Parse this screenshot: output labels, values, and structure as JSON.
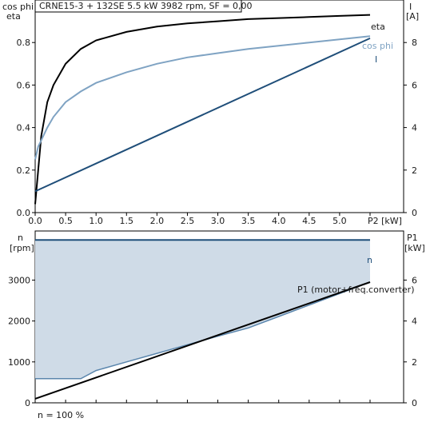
{
  "title": "CRNE15-3 + 132SE   5.5 kW   3982 rpm, SF = 0,00",
  "footer": "n = 100 %",
  "colors": {
    "eta": "#000000",
    "cos_phi": "#7fa3c3",
    "current": "#1f4e79",
    "speed": "#1f4e79",
    "speed_fill": "#cfdbe7",
    "power": "#000000",
    "frame": "#000000"
  },
  "chart_data": [
    {
      "type": "line",
      "xlabel": "P2 [kW]",
      "ylabel_left_top": "cos phi",
      "ylabel_left_bottom": "eta",
      "ylabel_right_top": "I",
      "ylabel_right_bottom": "[A]",
      "xlim": [
        0,
        5.5
      ],
      "ylim_left": [
        0,
        1
      ],
      "ylim_right": [
        0,
        10
      ],
      "x_ticks": [
        "0.0",
        "0.5",
        "1.0",
        "1.5",
        "2.0",
        "2.5",
        "3.0",
        "3.5",
        "4.0",
        "4.5",
        "5.0",
        "P2 [kW]"
      ],
      "y_left_ticks": [
        "0.0",
        "0.2",
        "0.4",
        "0.6",
        "0.8"
      ],
      "y_right_ticks": [
        "0",
        "2",
        "4",
        "6",
        "8"
      ],
      "series": [
        {
          "name": "eta",
          "axis": "left",
          "x": [
            0.0,
            0.05,
            0.1,
            0.2,
            0.3,
            0.5,
            0.75,
            1.0,
            1.5,
            2.0,
            2.5,
            3.0,
            3.5,
            4.0,
            4.5,
            5.0,
            5.5
          ],
          "y": [
            0.04,
            0.2,
            0.36,
            0.52,
            0.6,
            0.7,
            0.77,
            0.81,
            0.85,
            0.875,
            0.89,
            0.9,
            0.91,
            0.915,
            0.92,
            0.925,
            0.93
          ]
        },
        {
          "name": "cos phi",
          "axis": "left",
          "x": [
            0.0,
            0.05,
            0.1,
            0.2,
            0.3,
            0.5,
            0.75,
            1.0,
            1.5,
            2.0,
            2.5,
            3.0,
            3.5,
            4.0,
            4.5,
            5.0,
            5.5
          ],
          "y": [
            0.25,
            0.31,
            0.34,
            0.4,
            0.45,
            0.52,
            0.57,
            0.61,
            0.66,
            0.7,
            0.73,
            0.75,
            0.77,
            0.785,
            0.8,
            0.815,
            0.83
          ]
        },
        {
          "name": "I",
          "axis": "right",
          "x": [
            0.0,
            5.5
          ],
          "y": [
            1.0,
            8.2
          ]
        }
      ]
    },
    {
      "type": "area",
      "ylabel_left_top": "n",
      "ylabel_left_bottom": "[rpm]",
      "ylabel_right_top": "P1",
      "ylabel_right_bottom": "[kW]",
      "xlim": [
        0,
        5.5
      ],
      "ylim_left": [
        0,
        4200
      ],
      "ylim_right": [
        0,
        8.4
      ],
      "y_left_ticks": [
        "0",
        "1000",
        "2000",
        "3000"
      ],
      "y_right_ticks": [
        "0",
        "2",
        "4",
        "6"
      ],
      "annotations": [
        "n",
        "P1 (motor+freq.converter)"
      ],
      "series": [
        {
          "name": "n",
          "axis": "left",
          "x": [
            0.0,
            5.5
          ],
          "y": [
            3982,
            3982
          ]
        },
        {
          "name": "n lower",
          "axis": "left",
          "x": [
            0.0,
            0.75,
            1.0,
            1.5,
            2.0,
            2.5,
            3.0,
            3.5,
            4.0,
            4.5,
            5.0,
            5.5
          ],
          "y": [
            590,
            590,
            790,
            1000,
            1210,
            1420,
            1630,
            1830,
            2110,
            2390,
            2670,
            2950
          ]
        },
        {
          "name": "P1 (motor+freq.converter)",
          "axis": "right",
          "x": [
            0.0,
            5.5
          ],
          "y": [
            0.2,
            5.9
          ]
        }
      ]
    }
  ]
}
